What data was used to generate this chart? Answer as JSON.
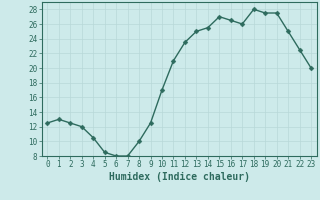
{
  "x": [
    0,
    1,
    2,
    3,
    4,
    5,
    6,
    7,
    8,
    9,
    10,
    11,
    12,
    13,
    14,
    15,
    16,
    17,
    18,
    19,
    20,
    21,
    22,
    23
  ],
  "y": [
    12.5,
    13,
    12.5,
    12,
    10.5,
    8.5,
    8,
    8,
    10,
    12.5,
    17,
    21,
    23.5,
    25,
    25.5,
    27,
    26.5,
    26,
    28,
    27.5,
    27.5,
    25,
    22.5,
    20
  ],
  "line_color": "#2e6b5e",
  "marker_color": "#2e6b5e",
  "bg_color": "#cdeaea",
  "grid_color": "#b8d8d8",
  "xlabel": "Humidex (Indice chaleur)",
  "ylabel": "",
  "ylim": [
    8,
    29
  ],
  "xlim": [
    -0.5,
    23.5
  ],
  "yticks": [
    8,
    10,
    12,
    14,
    16,
    18,
    20,
    22,
    24,
    26,
    28
  ],
  "xticks": [
    0,
    1,
    2,
    3,
    4,
    5,
    6,
    7,
    8,
    9,
    10,
    11,
    12,
    13,
    14,
    15,
    16,
    17,
    18,
    19,
    20,
    21,
    22,
    23
  ],
  "marker_size": 2.5,
  "line_width": 1.0,
  "font_size_label": 7,
  "font_size_tick": 5.5
}
